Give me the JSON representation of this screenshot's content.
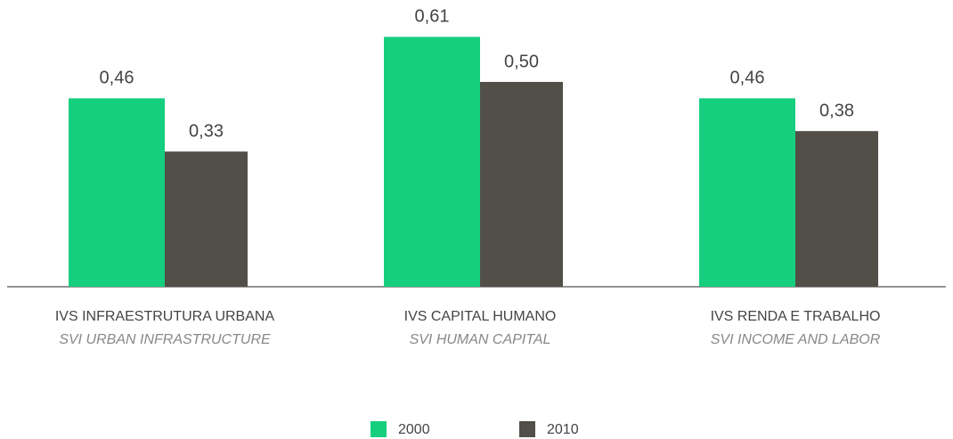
{
  "chart_data": {
    "type": "bar",
    "categories": [
      "IVS INFRAESTRUTURA URBANA",
      "IVS CAPITAL HUMANO",
      "IVS RENDA E TRABALHO"
    ],
    "categories_en": [
      "SVI URBAN INFRASTRUCTURE",
      "SVI HUMAN CAPITAL",
      "SVI INCOME AND LABOR"
    ],
    "series": [
      {
        "name": "2000",
        "color": "#15cf7e",
        "values": [
          0.46,
          0.61,
          0.46
        ],
        "value_labels": [
          "0,46",
          "0,61",
          "0,46"
        ]
      },
      {
        "name": "2010",
        "color": "#524f49",
        "values": [
          0.33,
          0.5,
          0.38
        ],
        "value_labels": [
          "0,33",
          "0,50",
          "0,38"
        ]
      }
    ],
    "ylim": [
      0,
      0.7
    ]
  }
}
